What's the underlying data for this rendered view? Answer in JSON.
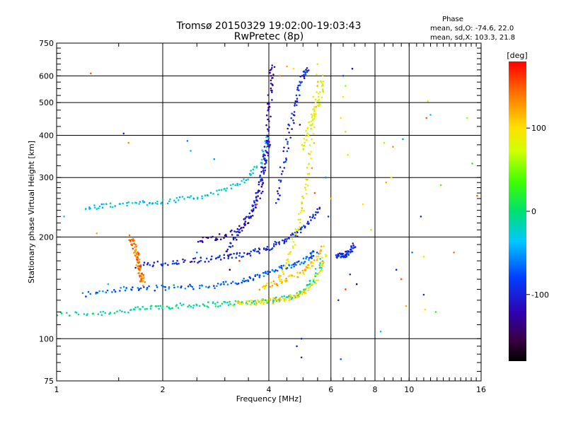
{
  "chart_data": {
    "type": "scatter",
    "title": "Tromsø 20150329 19:02:00-19:03:43",
    "subtitle": "RwPretec (8p)",
    "xlabel": "Frequency [MHz]",
    "ylabel": "Stationary phase Virtual Height [km]",
    "xscale": "log",
    "yscale": "log",
    "xlim": [
      1,
      16
    ],
    "ylim": [
      75,
      750
    ],
    "x_ticks": [
      "1",
      "2",
      "4",
      "6",
      "8",
      "10",
      "16"
    ],
    "x_tick_values": [
      1,
      2,
      4,
      6,
      8,
      10,
      16
    ],
    "y_ticks": [
      "75",
      "100",
      "200",
      "300",
      "400",
      "500",
      "600",
      "750"
    ],
    "y_tick_values": [
      75,
      100,
      200,
      300,
      400,
      500,
      600,
      750
    ],
    "x_major_grid": [
      2,
      4,
      6,
      8,
      10
    ],
    "y_major_grid": [
      100,
      200,
      300,
      400,
      500,
      600
    ],
    "phase_stats": {
      "heading": "Phase",
      "line_o": "mean, sd,O: -74.6, 22.0",
      "line_x": "mean, sd,X: 103.3, 21.8"
    },
    "colorbar": {
      "label": "[deg]",
      "range": [
        -180,
        180
      ],
      "ticks": [
        "100",
        "0",
        "-100"
      ],
      "tick_values": [
        100,
        0,
        -100
      ]
    },
    "traces": [
      {
        "x": [
          1.0,
          1.3,
          1.6,
          1.9,
          2.2,
          2.6,
          3.0,
          3.5,
          4.0,
          4.5,
          5.0,
          5.4,
          5.7
        ],
        "y": [
          118,
          119,
          121,
          124,
          125,
          126,
          127,
          128,
          130,
          132,
          138,
          150,
          175
        ],
        "phase": -10
      },
      {
        "x": [
          3.2,
          3.6,
          4.0,
          4.4,
          4.8,
          5.2,
          5.6,
          5.8
        ],
        "y": [
          127,
          128,
          129,
          131,
          134,
          140,
          158,
          180
        ],
        "phase": 95
      },
      {
        "x": [
          1.2,
          1.5,
          1.8,
          2.2,
          2.7,
          3.2,
          3.6,
          4.0,
          4.4,
          4.8,
          5.2,
          5.5
        ],
        "y": [
          135,
          140,
          141,
          142,
          143,
          146,
          151,
          157,
          162,
          167,
          174,
          182
        ],
        "phase": -70
      },
      {
        "x": [
          3.8,
          4.2,
          4.6,
          5.0,
          5.4,
          5.7
        ],
        "y": [
          142,
          146,
          151,
          158,
          168,
          188
        ],
        "phase": 110
      },
      {
        "x": [
          1.7,
          2.0,
          2.4,
          2.8,
          3.2,
          3.6,
          4.0,
          4.4,
          4.8,
          5.2,
          5.6
        ],
        "y": [
          165,
          167,
          170,
          173,
          176,
          180,
          186,
          194,
          205,
          222,
          248
        ],
        "phase": -95
      },
      {
        "x": [
          1.2,
          1.4,
          1.7,
          2.0,
          2.4,
          2.9,
          3.4,
          3.8,
          4.0
        ],
        "y": [
          242,
          248,
          252,
          255,
          260,
          272,
          292,
          330,
          400
        ],
        "phase": -30
      },
      {
        "x": [
          2.5,
          2.9,
          3.3,
          3.6,
          3.8,
          3.9,
          4.0,
          4.05,
          4.1
        ],
        "y": [
          195,
          200,
          210,
          235,
          280,
          360,
          460,
          560,
          650
        ],
        "phase": -120
      },
      {
        "x": [
          3.0,
          3.3,
          3.6,
          3.8,
          3.9,
          4.0
        ],
        "y": [
          180,
          205,
          240,
          290,
          340,
          390
        ],
        "phase": -100
      },
      {
        "x": [
          4.3,
          4.6,
          4.9,
          5.1,
          5.3,
          5.5
        ],
        "y": [
          150,
          180,
          225,
          280,
          380,
          620
        ],
        "phase": 95
      },
      {
        "x": [
          4.2,
          4.4,
          4.6,
          4.8,
          5.0,
          5.2
        ],
        "y": [
          250,
          330,
          420,
          520,
          600,
          640
        ],
        "phase": -95
      },
      {
        "x": [
          5.0,
          5.2,
          5.4,
          5.6,
          5.7
        ],
        "y": [
          360,
          420,
          470,
          520,
          600
        ],
        "phase": 80
      },
      {
        "x": [
          1.62,
          1.65,
          1.68,
          1.7,
          1.72,
          1.74,
          1.76
        ],
        "y": [
          200,
          190,
          180,
          170,
          160,
          152,
          145
        ],
        "phase": 140
      },
      {
        "x": [
          6.2,
          6.4,
          6.6,
          6.8,
          7.0
        ],
        "y": [
          175,
          176,
          178,
          182,
          190
        ],
        "phase": -95
      }
    ],
    "points": [
      {
        "x": 1.25,
        "y": 610,
        "phase": 150
      },
      {
        "x": 1.55,
        "y": 405,
        "phase": -100
      },
      {
        "x": 1.6,
        "y": 380,
        "phase": 130
      },
      {
        "x": 2.35,
        "y": 385,
        "phase": -60
      },
      {
        "x": 2.4,
        "y": 360,
        "phase": -40
      },
      {
        "x": 2.8,
        "y": 340,
        "phase": -50
      },
      {
        "x": 1.05,
        "y": 230,
        "phase": -40
      },
      {
        "x": 1.3,
        "y": 205,
        "phase": 120
      },
      {
        "x": 4.95,
        "y": 100,
        "phase": -100
      },
      {
        "x": 4.95,
        "y": 88,
        "phase": -100
      },
      {
        "x": 6.4,
        "y": 87,
        "phase": -70
      },
      {
        "x": 4.8,
        "y": 95,
        "phase": -90
      },
      {
        "x": 6.5,
        "y": 600,
        "phase": -80
      },
      {
        "x": 6.9,
        "y": 630,
        "phase": -120
      },
      {
        "x": 6.6,
        "y": 560,
        "phase": 60
      },
      {
        "x": 6.5,
        "y": 520,
        "phase": 100
      },
      {
        "x": 6.4,
        "y": 450,
        "phase": 90
      },
      {
        "x": 6.6,
        "y": 410,
        "phase": 110
      },
      {
        "x": 6.7,
        "y": 350,
        "phase": 80
      },
      {
        "x": 7.4,
        "y": 250,
        "phase": 100
      },
      {
        "x": 7.8,
        "y": 210,
        "phase": 60
      },
      {
        "x": 8.6,
        "y": 290,
        "phase": 120
      },
      {
        "x": 8.9,
        "y": 300,
        "phase": 90
      },
      {
        "x": 8.5,
        "y": 380,
        "phase": 60
      },
      {
        "x": 9.0,
        "y": 370,
        "phase": 130
      },
      {
        "x": 9.6,
        "y": 390,
        "phase": -50
      },
      {
        "x": 9.2,
        "y": 160,
        "phase": -100
      },
      {
        "x": 9.5,
        "y": 150,
        "phase": 150
      },
      {
        "x": 9.8,
        "y": 125,
        "phase": 120
      },
      {
        "x": 8.3,
        "y": 105,
        "phase": -30
      },
      {
        "x": 10.2,
        "y": 180,
        "phase": -60
      },
      {
        "x": 10.8,
        "y": 230,
        "phase": -100
      },
      {
        "x": 11.0,
        "y": 175,
        "phase": 80
      },
      {
        "x": 11.2,
        "y": 450,
        "phase": 150
      },
      {
        "x": 11.3,
        "y": 505,
        "phase": 90
      },
      {
        "x": 11.5,
        "y": 460,
        "phase": -30
      },
      {
        "x": 11.0,
        "y": 135,
        "phase": -100
      },
      {
        "x": 11.1,
        "y": 122,
        "phase": 100
      },
      {
        "x": 11.9,
        "y": 120,
        "phase": 30
      },
      {
        "x": 12.3,
        "y": 285,
        "phase": 40
      },
      {
        "x": 13.4,
        "y": 180,
        "phase": 140
      },
      {
        "x": 14.6,
        "y": 450,
        "phase": 60
      },
      {
        "x": 15.1,
        "y": 330,
        "phase": 20
      },
      {
        "x": 15.6,
        "y": 265,
        "phase": 150
      },
      {
        "x": 5.8,
        "y": 300,
        "phase": -60
      },
      {
        "x": 6.0,
        "y": 260,
        "phase": 120
      },
      {
        "x": 5.9,
        "y": 230,
        "phase": -90
      },
      {
        "x": 6.6,
        "y": 140,
        "phase": 160
      },
      {
        "x": 6.8,
        "y": 155,
        "phase": -90
      },
      {
        "x": 7.1,
        "y": 145,
        "phase": -140
      },
      {
        "x": 6.3,
        "y": 130,
        "phase": -90
      },
      {
        "x": 4.7,
        "y": 460,
        "phase": -120
      },
      {
        "x": 4.9,
        "y": 430,
        "phase": -160
      },
      {
        "x": 5.3,
        "y": 320,
        "phase": 130
      },
      {
        "x": 5.4,
        "y": 270,
        "phase": 150
      },
      {
        "x": 3.7,
        "y": 250,
        "phase": 160
      },
      {
        "x": 3.5,
        "y": 220,
        "phase": -160
      },
      {
        "x": 3.3,
        "y": 170,
        "phase": 160
      },
      {
        "x": 3.1,
        "y": 160,
        "phase": -150
      },
      {
        "x": 4.3,
        "y": 600,
        "phase": 140
      },
      {
        "x": 4.5,
        "y": 640,
        "phase": 120
      },
      {
        "x": 4.7,
        "y": 630,
        "phase": 100
      },
      {
        "x": 5.5,
        "y": 650,
        "phase": 80
      },
      {
        "x": 2.2,
        "y": 170,
        "phase": -100
      },
      {
        "x": 2.5,
        "y": 180,
        "phase": -60
      },
      {
        "x": 1.4,
        "y": 145,
        "phase": -20
      }
    ]
  }
}
